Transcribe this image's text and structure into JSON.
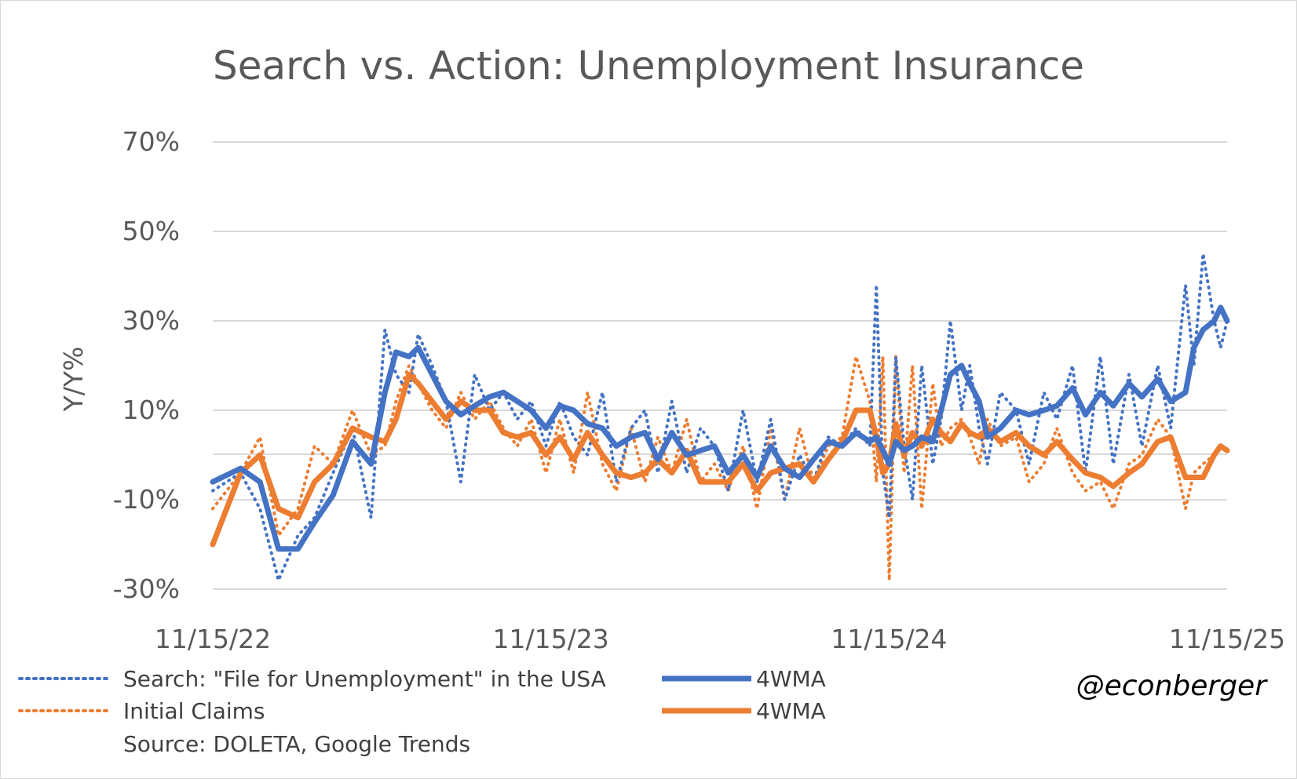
{
  "chart_data": {
    "type": "line",
    "title": "Search vs. Action: Unemployment Insurance",
    "ylabel": "Y/Y%",
    "xlabel": "",
    "ylim": [
      -30,
      70
    ],
    "yticks": [
      -30,
      -10,
      10,
      30,
      50,
      70
    ],
    "ytick_labels": [
      "-30%",
      "-10%",
      "10%",
      "30%",
      "50%",
      "70%"
    ],
    "xlim": [
      "2022-11-15",
      "2025-11-15"
    ],
    "x_tick_labels": [
      "11/15/22",
      "11/15/23",
      "11/15/24",
      "11/15/25"
    ],
    "grid": true,
    "legend_position": "bottom",
    "source_note": "Source: DOLETA, Google Trends",
    "watermark": "@econberger",
    "series": [
      {
        "name": "Search: \"File for Unemployment\" in the USA",
        "style": "dotted",
        "color": "#4472C4",
        "x": [
          "2022-11-15",
          "2022-12-15",
          "2023-01-05",
          "2023-01-25",
          "2023-02-15",
          "2023-03-05",
          "2023-03-25",
          "2023-04-15",
          "2023-05-05",
          "2023-05-20",
          "2023-06-01",
          "2023-06-15",
          "2023-06-25",
          "2023-07-10",
          "2023-07-25",
          "2023-08-10",
          "2023-08-25",
          "2023-09-10",
          "2023-09-25",
          "2023-10-10",
          "2023-10-25",
          "2023-11-10",
          "2023-11-25",
          "2023-12-10",
          "2023-12-25",
          "2024-01-10",
          "2024-01-25",
          "2024-02-10",
          "2024-02-25",
          "2024-03-10",
          "2024-03-25",
          "2024-04-10",
          "2024-04-25",
          "2024-05-10",
          "2024-05-25",
          "2024-06-10",
          "2024-06-25",
          "2024-07-10",
          "2024-07-25",
          "2024-08-10",
          "2024-08-25",
          "2024-09-10",
          "2024-09-25",
          "2024-10-10",
          "2024-10-25",
          "2024-11-01",
          "2024-11-08",
          "2024-11-15",
          "2024-11-22",
          "2024-12-01",
          "2024-12-10",
          "2024-12-20",
          "2025-01-01",
          "2025-01-10",
          "2025-01-20",
          "2025-02-01",
          "2025-02-10",
          "2025-02-20",
          "2025-03-01",
          "2025-03-15",
          "2025-04-01",
          "2025-04-15",
          "2025-05-01",
          "2025-05-15",
          "2025-06-01",
          "2025-06-15",
          "2025-07-01",
          "2025-07-15",
          "2025-08-01",
          "2025-08-15",
          "2025-09-01",
          "2025-09-15",
          "2025-10-01",
          "2025-10-10",
          "2025-10-20",
          "2025-11-01",
          "2025-11-08",
          "2025-11-15"
        ],
        "values": [
          -8,
          -4,
          -12,
          -28,
          -18,
          -14,
          -4,
          6,
          -14,
          28,
          18,
          14,
          27,
          20,
          12,
          -6,
          18,
          10,
          14,
          8,
          12,
          2,
          12,
          4,
          0,
          14,
          -6,
          6,
          10,
          -4,
          12,
          -4,
          6,
          2,
          -8,
          10,
          -6,
          8,
          -10,
          0,
          -6,
          4,
          2,
          6,
          2,
          38,
          -4,
          -14,
          22,
          2,
          -10,
          20,
          -2,
          8,
          30,
          10,
          20,
          6,
          -2,
          14,
          10,
          -2,
          14,
          8,
          20,
          -4,
          22,
          -2,
          18,
          2,
          20,
          6,
          38,
          20,
          45,
          30,
          24,
          30
        ]
      },
      {
        "name": "4WMA",
        "style": "solid",
        "color": "#4472C4",
        "x": [
          "2022-11-15",
          "2022-12-15",
          "2023-01-05",
          "2023-01-25",
          "2023-02-15",
          "2023-03-05",
          "2023-03-25",
          "2023-04-15",
          "2023-05-05",
          "2023-05-20",
          "2023-06-01",
          "2023-06-15",
          "2023-06-25",
          "2023-07-10",
          "2023-07-25",
          "2023-08-10",
          "2023-08-25",
          "2023-09-10",
          "2023-09-25",
          "2023-10-10",
          "2023-10-25",
          "2023-11-10",
          "2023-11-25",
          "2023-12-10",
          "2023-12-25",
          "2024-01-10",
          "2024-01-25",
          "2024-02-10",
          "2024-02-25",
          "2024-03-10",
          "2024-03-25",
          "2024-04-10",
          "2024-04-25",
          "2024-05-10",
          "2024-05-25",
          "2024-06-10",
          "2024-06-25",
          "2024-07-10",
          "2024-07-25",
          "2024-08-10",
          "2024-08-25",
          "2024-09-10",
          "2024-09-25",
          "2024-10-10",
          "2024-10-25",
          "2024-11-01",
          "2024-11-08",
          "2024-11-15",
          "2024-11-22",
          "2024-12-01",
          "2024-12-10",
          "2024-12-20",
          "2025-01-01",
          "2025-01-10",
          "2025-01-20",
          "2025-02-01",
          "2025-02-10",
          "2025-02-20",
          "2025-03-01",
          "2025-03-15",
          "2025-04-01",
          "2025-04-15",
          "2025-05-01",
          "2025-05-15",
          "2025-06-01",
          "2025-06-15",
          "2025-07-01",
          "2025-07-15",
          "2025-08-01",
          "2025-08-15",
          "2025-09-01",
          "2025-09-15",
          "2025-10-01",
          "2025-10-10",
          "2025-10-20",
          "2025-11-01",
          "2025-11-08",
          "2025-11-15"
        ],
        "values": [
          -6,
          -3,
          -6,
          -21,
          -21,
          -15,
          -9,
          3,
          -2,
          14,
          23,
          22,
          24,
          18,
          12,
          9,
          11,
          13,
          14,
          12,
          10,
          6,
          11,
          10,
          7,
          6,
          2,
          4,
          5,
          -1,
          5,
          0,
          1,
          2,
          -4,
          0,
          -5,
          2,
          -3,
          -5,
          -1,
          3,
          2,
          5,
          3,
          4,
          1,
          -2,
          3,
          1,
          2,
          4,
          3,
          10,
          18,
          20,
          16,
          12,
          4,
          6,
          10,
          9,
          10,
          11,
          15,
          9,
          14,
          11,
          16,
          13,
          17,
          12,
          14,
          24,
          28,
          30,
          33,
          30
        ]
      },
      {
        "name": "Initial Claims",
        "style": "dotted",
        "color": "#ED7D31",
        "x": [
          "2022-11-15",
          "2022-12-15",
          "2023-01-05",
          "2023-01-25",
          "2023-02-15",
          "2023-03-05",
          "2023-03-25",
          "2023-04-15",
          "2023-05-05",
          "2023-05-20",
          "2023-06-01",
          "2023-06-15",
          "2023-06-25",
          "2023-07-10",
          "2023-07-25",
          "2023-08-10",
          "2023-08-25",
          "2023-09-10",
          "2023-09-25",
          "2023-10-10",
          "2023-10-25",
          "2023-11-10",
          "2023-11-25",
          "2023-12-10",
          "2023-12-25",
          "2024-01-10",
          "2024-01-25",
          "2024-02-10",
          "2024-02-25",
          "2024-03-10",
          "2024-03-25",
          "2024-04-10",
          "2024-04-25",
          "2024-05-10",
          "2024-05-25",
          "2024-06-10",
          "2024-06-25",
          "2024-07-10",
          "2024-07-25",
          "2024-08-10",
          "2024-08-25",
          "2024-09-10",
          "2024-09-25",
          "2024-10-10",
          "2024-10-25",
          "2024-11-01",
          "2024-11-08",
          "2024-11-15",
          "2024-11-22",
          "2024-12-01",
          "2024-12-10",
          "2024-12-20",
          "2025-01-01",
          "2025-01-10",
          "2025-01-20",
          "2025-02-01",
          "2025-02-10",
          "2025-02-20",
          "2025-03-01",
          "2025-03-15",
          "2025-04-01",
          "2025-04-15",
          "2025-05-01",
          "2025-05-15",
          "2025-06-01",
          "2025-06-15",
          "2025-07-01",
          "2025-07-15",
          "2025-08-01",
          "2025-08-15",
          "2025-09-01",
          "2025-09-15",
          "2025-10-01",
          "2025-10-10",
          "2025-10-20",
          "2025-11-01",
          "2025-11-08",
          "2025-11-15"
        ],
        "values": [
          -12,
          -4,
          4,
          -18,
          -12,
          2,
          -2,
          10,
          0,
          2,
          12,
          20,
          16,
          10,
          6,
          14,
          8,
          12,
          6,
          2,
          8,
          -4,
          8,
          -4,
          14,
          -2,
          -8,
          6,
          -6,
          4,
          -4,
          8,
          -6,
          -2,
          -8,
          2,
          -12,
          6,
          -10,
          6,
          -6,
          2,
          4,
          22,
          12,
          -6,
          22,
          -28,
          22,
          -4,
          20,
          -12,
          16,
          2,
          6,
          8,
          4,
          -2,
          8,
          2,
          4,
          -6,
          -2,
          6,
          -4,
          -8,
          -6,
          -12,
          -2,
          0,
          8,
          4,
          -12,
          -4,
          -2,
          0,
          2,
          2
        ]
      },
      {
        "name": "4WMA",
        "style": "solid",
        "color": "#ED7D31",
        "x": [
          "2022-11-15",
          "2022-12-15",
          "2023-01-05",
          "2023-01-25",
          "2023-02-15",
          "2023-03-05",
          "2023-03-25",
          "2023-04-15",
          "2023-05-05",
          "2023-05-20",
          "2023-06-01",
          "2023-06-15",
          "2023-06-25",
          "2023-07-10",
          "2023-07-25",
          "2023-08-10",
          "2023-08-25",
          "2023-09-10",
          "2023-09-25",
          "2023-10-10",
          "2023-10-25",
          "2023-11-10",
          "2023-11-25",
          "2023-12-10",
          "2023-12-25",
          "2024-01-10",
          "2024-01-25",
          "2024-02-10",
          "2024-02-25",
          "2024-03-10",
          "2024-03-25",
          "2024-04-10",
          "2024-04-25",
          "2024-05-10",
          "2024-05-25",
          "2024-06-10",
          "2024-06-25",
          "2024-07-10",
          "2024-07-25",
          "2024-08-10",
          "2024-08-25",
          "2024-09-10",
          "2024-09-25",
          "2024-10-10",
          "2024-10-25",
          "2024-11-01",
          "2024-11-08",
          "2024-11-15",
          "2024-11-22",
          "2024-12-01",
          "2024-12-10",
          "2024-12-20",
          "2025-01-01",
          "2025-01-10",
          "2025-01-20",
          "2025-02-01",
          "2025-02-10",
          "2025-02-20",
          "2025-03-01",
          "2025-03-15",
          "2025-04-01",
          "2025-04-15",
          "2025-05-01",
          "2025-05-15",
          "2025-06-01",
          "2025-06-15",
          "2025-07-01",
          "2025-07-15",
          "2025-08-01",
          "2025-08-15",
          "2025-09-01",
          "2025-09-15",
          "2025-10-01",
          "2025-10-10",
          "2025-10-20",
          "2025-11-01",
          "2025-11-08",
          "2025-11-15"
        ],
        "values": [
          -20,
          -4,
          0,
          -12,
          -14,
          -6,
          -2,
          6,
          4,
          3,
          8,
          18,
          16,
          12,
          8,
          12,
          10,
          10,
          5,
          4,
          5,
          0,
          4,
          -1,
          5,
          0,
          -4,
          -5,
          -4,
          -1,
          -4,
          1,
          -6,
          -6,
          -6,
          -2,
          -8,
          -4,
          -3,
          -2,
          -6,
          -1,
          3,
          10,
          10,
          4,
          -4,
          -2,
          7,
          0,
          5,
          2,
          8,
          5,
          3,
          7,
          5,
          4,
          6,
          3,
          5,
          2,
          0,
          3,
          -1,
          -4,
          -5,
          -7,
          -4,
          -2,
          3,
          4,
          -5,
          -5,
          -5,
          0,
          2,
          1
        ]
      }
    ]
  },
  "legend": {
    "item1": "Search: \"File for Unemployment\" in the USA",
    "item2": "4WMA",
    "item3": "Initial Claims",
    "item4": "4WMA",
    "source": "Source: DOLETA, Google Trends"
  }
}
